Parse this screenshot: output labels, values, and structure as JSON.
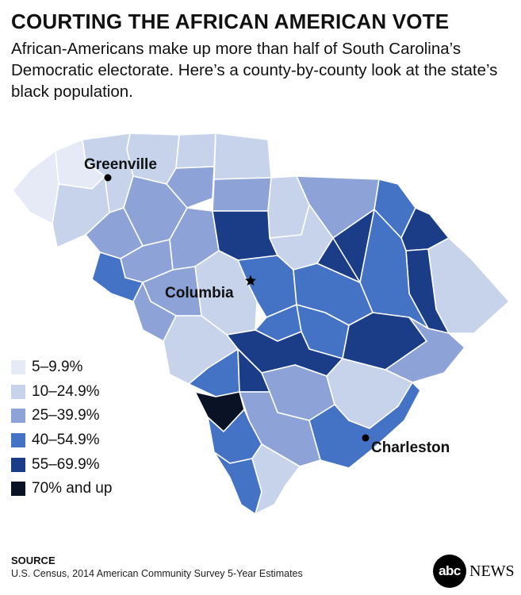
{
  "title": "COURTING THE AFRICAN AMERICAN VOTE",
  "subtitle": "African-Americans make up more than half of South Carolina’s Democratic electorate. Here’s a county-by-county look at the state’s black population.",
  "colors": {
    "c1": "#e5eaf6",
    "c2": "#c6d3ea",
    "c3": "#8da2d6",
    "c4": "#4472c4",
    "c5": "#1b3d88",
    "c6": "#0a1226",
    "border": "#ffffff"
  },
  "legend": [
    {
      "label": "5–9.9%",
      "color": "#e5eaf6"
    },
    {
      "label": "10–24.9%",
      "color": "#c6d3ea"
    },
    {
      "label": "25–39.9%",
      "color": "#8da2d6"
    },
    {
      "label": "40–54.9%",
      "color": "#4472c4"
    },
    {
      "label": "55–69.9%",
      "color": "#1b3d88"
    },
    {
      "label": "70% and up",
      "color": "#0a1226"
    }
  ],
  "cities": {
    "greenville": "Greenville",
    "columbia": "Columbia",
    "charleston": "Charleston"
  },
  "source": {
    "heading": "SOURCE",
    "text": "U.S. Census, 2014 American Community Survey 5-Year Estimates"
  },
  "brand": {
    "mark": "abc",
    "word": "NEWS"
  }
}
